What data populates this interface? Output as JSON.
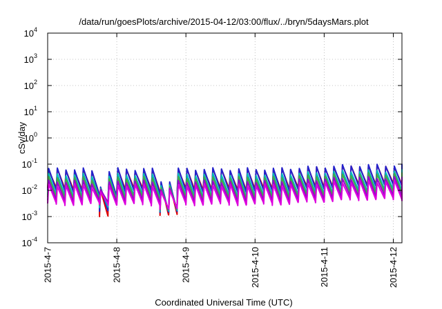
{
  "chart_data": {
    "type": "line",
    "title": "/data/run/goesPlots/archive/2015-04-12/03:00/flux/../bryn/5daysMars.plot",
    "xlabel": "Coordinated Universal Time (UTC)",
    "ylabel": "cSv/day",
    "y_scale": "log",
    "ylim": [
      0.0001,
      10000
    ],
    "xlim": [
      "2015-04-07 00:00",
      "2015-04-12 03:00"
    ],
    "grid": true,
    "y_ticks": [
      {
        "base": "10",
        "exp": "-4"
      },
      {
        "base": "10",
        "exp": "-3"
      },
      {
        "base": "10",
        "exp": "-2"
      },
      {
        "base": "10",
        "exp": "-1"
      },
      {
        "base": "10",
        "exp": "0"
      },
      {
        "base": "10",
        "exp": "1"
      },
      {
        "base": "10",
        "exp": "2"
      },
      {
        "base": "10",
        "exp": "3"
      },
      {
        "base": "10",
        "exp": "4"
      }
    ],
    "x_ticks": [
      "2015-4-7",
      "2015-4-8",
      "2015-4-9",
      "2015-4-10",
      "2015-4-11",
      "2015-4-12"
    ],
    "sawtooth_period_hours": 3,
    "dips": [
      {
        "time": "2015-04-07 19:00",
        "min": 0.001
      },
      {
        "time": "2015-04-08 17:30",
        "min": 0.0004
      }
    ],
    "series": [
      {
        "color": "#dd0000",
        "peak": 0.06,
        "trough": 0.011,
        "peak_late": 0.085,
        "trough_late": 0.017
      },
      {
        "color": "#2222cc",
        "peak": 0.065,
        "trough": 0.009,
        "peak_late": 0.09,
        "trough_late": 0.015
      },
      {
        "color": "#00bbbb",
        "peak": 0.04,
        "trough": 0.006,
        "peak_late": 0.055,
        "trough_late": 0.01
      },
      {
        "color": "#44aa44",
        "peak": 0.03,
        "trough": 0.005,
        "peak_late": 0.042,
        "trough_late": 0.008
      },
      {
        "color": "#9900cc",
        "peak": 0.022,
        "trough": 0.0038,
        "peak_late": 0.03,
        "trough_late": 0.006
      },
      {
        "color": "#dd00dd",
        "peak": 0.016,
        "trough": 0.0029,
        "peak_late": 0.022,
        "trough_late": 0.0045
      }
    ]
  }
}
